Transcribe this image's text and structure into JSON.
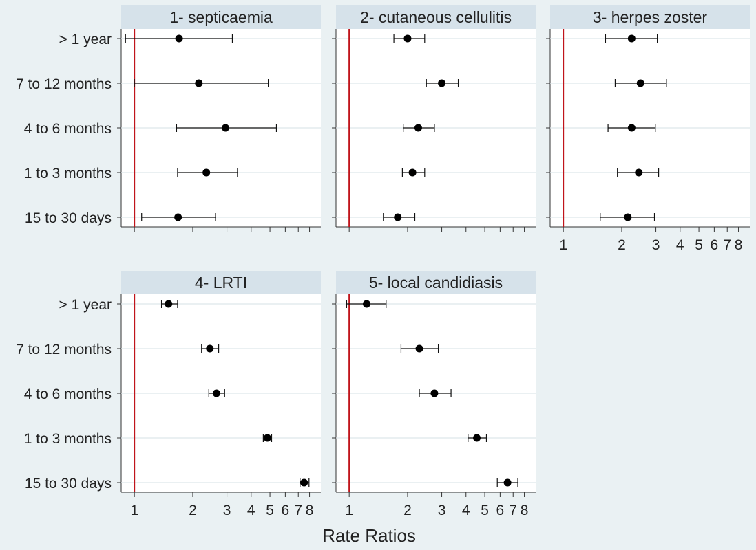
{
  "figure": {
    "xlabel": "Rate Ratios",
    "background": "#eaf1f3"
  },
  "style": {
    "panel_bg": "#ffffff",
    "header_bg": "#d6e2ea",
    "grid_color": "#dde6ea",
    "reference_line_color": "#c0141b",
    "point_color": "#000000"
  },
  "x_ticks": [
    1,
    2,
    3,
    4,
    5,
    6,
    7,
    8
  ],
  "x_tick_labels": [
    "1",
    "2",
    "3",
    "4",
    "5",
    "6",
    "7",
    "8"
  ],
  "categories": [
    "> 1 year",
    "7 to 12 months",
    "4 to 6 months",
    "1 to 3 months",
    "15 to 30 days"
  ],
  "chart_data": [
    {
      "type": "scatter",
      "title": "1- septicaemia",
      "xscale": "log",
      "reference_line": 1,
      "categories": [
        "> 1 year",
        "7 to 12 months",
        "4 to 6 months",
        "1 to 3 months",
        "15 to 30 days"
      ],
      "estimates": [
        1.7,
        2.15,
        2.95,
        2.35,
        1.68
      ],
      "lower": [
        0.9,
        1.0,
        1.65,
        1.67,
        1.09
      ],
      "upper": [
        3.2,
        4.9,
        5.4,
        3.4,
        2.62
      ]
    },
    {
      "type": "scatter",
      "title": "2- cutaneous cellulitis",
      "xscale": "log",
      "reference_line": 1,
      "categories": [
        "> 1 year",
        "7 to 12 months",
        "4 to 6 months",
        "1 to 3 months",
        "15 to 30 days"
      ],
      "estimates": [
        2.0,
        3.0,
        2.27,
        2.12,
        1.78
      ],
      "lower": [
        1.7,
        2.5,
        1.9,
        1.88,
        1.5
      ],
      "upper": [
        2.45,
        3.65,
        2.75,
        2.45,
        2.18
      ]
    },
    {
      "type": "scatter",
      "title": "3- herpes zoster",
      "xscale": "log",
      "reference_line": 1,
      "categories": [
        "> 1 year",
        "7 to 12 months",
        "4 to 6 months",
        "1 to 3 months",
        "15 to 30 days"
      ],
      "estimates": [
        2.25,
        2.5,
        2.25,
        2.45,
        2.15
      ],
      "lower": [
        1.65,
        1.85,
        1.7,
        1.9,
        1.55
      ],
      "upper": [
        3.05,
        3.4,
        2.98,
        3.1,
        2.95
      ]
    },
    {
      "type": "scatter",
      "title": "4- LRTI",
      "xscale": "log",
      "reference_line": 1,
      "categories": [
        "> 1 year",
        "7 to 12 months",
        "4 to 6 months",
        "1 to 3 months",
        "15 to 30 days"
      ],
      "estimates": [
        1.5,
        2.45,
        2.65,
        4.85,
        7.5
      ],
      "lower": [
        1.38,
        2.22,
        2.42,
        4.62,
        7.15
      ],
      "upper": [
        1.67,
        2.72,
        2.92,
        5.1,
        7.95
      ]
    },
    {
      "type": "scatter",
      "title": "5- local candidiasis",
      "xscale": "log",
      "reference_line": 1,
      "categories": [
        "> 1 year",
        "7 to 12 months",
        "4 to 6 months",
        "1 to 3 months",
        "15 to 30 days"
      ],
      "estimates": [
        1.23,
        2.3,
        2.75,
        4.55,
        6.55
      ],
      "lower": [
        0.97,
        1.85,
        2.3,
        4.1,
        5.8
      ],
      "upper": [
        1.55,
        2.88,
        3.35,
        5.1,
        7.4
      ]
    }
  ]
}
